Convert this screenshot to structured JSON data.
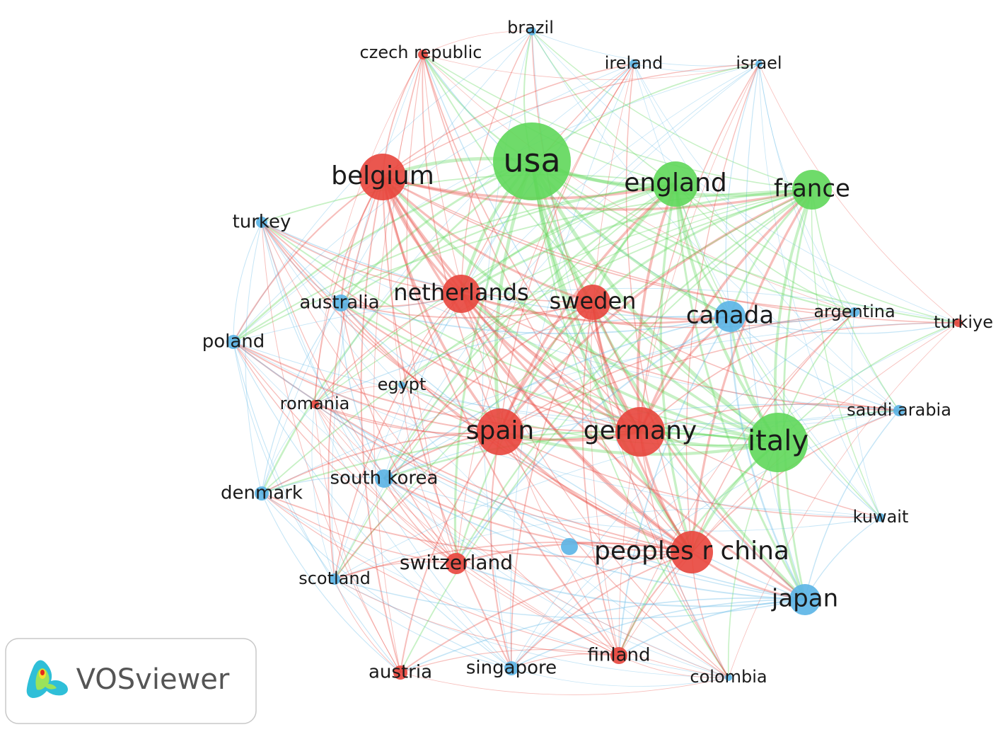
{
  "nodes": [
    {
      "label": "brazil"
    },
    {
      "label": "czech republic"
    },
    {
      "label": "ireland"
    },
    {
      "label": "israel"
    },
    {
      "label": "usa"
    },
    {
      "label": "belgium"
    },
    {
      "label": "england"
    },
    {
      "label": "france"
    },
    {
      "label": "turkey"
    },
    {
      "label": "australia"
    },
    {
      "label": "netherlands"
    },
    {
      "label": "sweden"
    },
    {
      "label": "canada"
    },
    {
      "label": "argentina"
    },
    {
      "label": "turkiye"
    },
    {
      "label": "poland"
    },
    {
      "label": "egypt"
    },
    {
      "label": "romania"
    },
    {
      "label": "saudi arabia"
    },
    {
      "label": "spain"
    },
    {
      "label": "germany"
    },
    {
      "label": "italy"
    },
    {
      "label": "south korea"
    },
    {
      "label": "denmark"
    },
    {
      "label": "kuwait"
    },
    {
      "label": "peoples r china"
    },
    {
      "label": "switzerland"
    },
    {
      "label": "scotland"
    },
    {
      "label": "japan"
    },
    {
      "label": "finland"
    },
    {
      "label": "austria"
    },
    {
      "label": "singapore"
    },
    {
      "label": "colombia"
    }
  ],
  "logo": {
    "text": "VOSviewer"
  }
}
